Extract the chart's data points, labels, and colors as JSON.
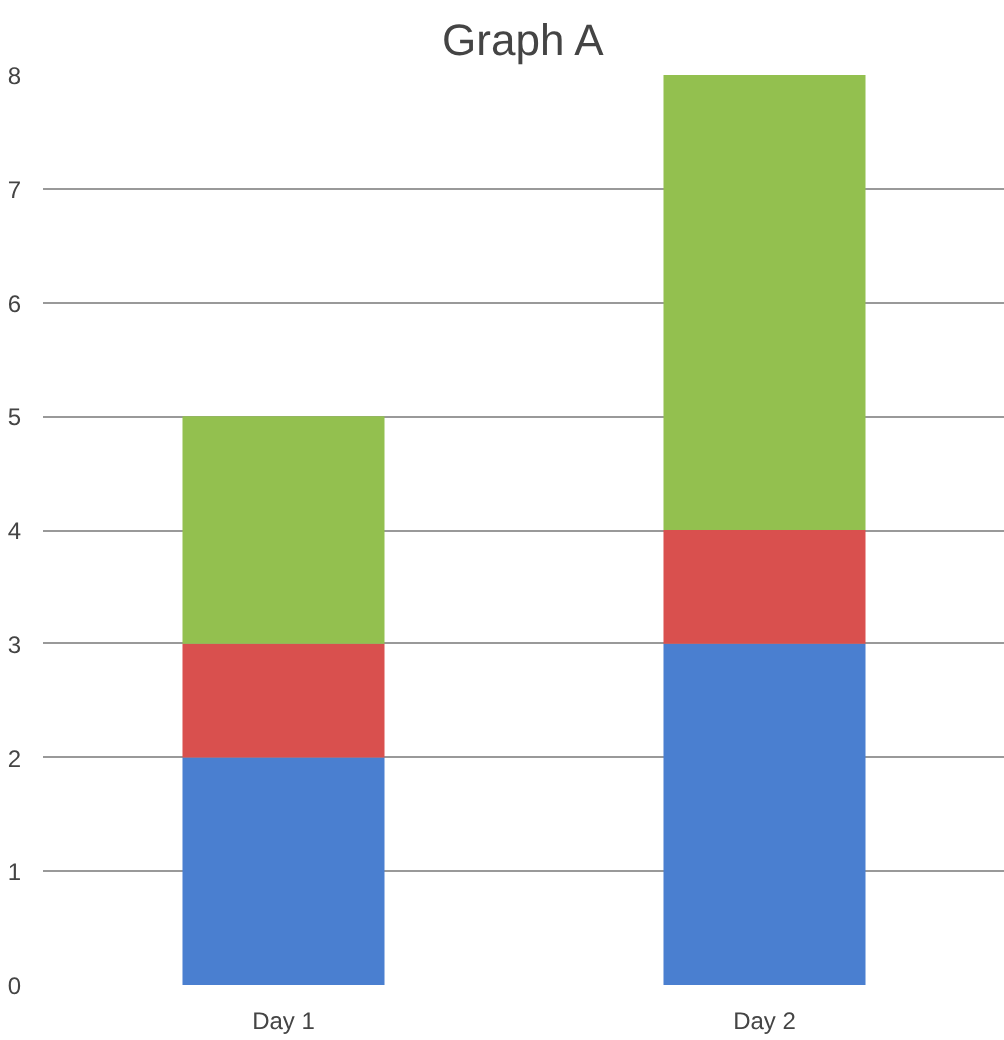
{
  "chart_data": {
    "type": "bar",
    "title": "Graph A",
    "stacked": true,
    "categories": [
      "Day 1",
      "Day 2"
    ],
    "series": [
      {
        "color": "#4a7fd0",
        "values": [
          2,
          3
        ]
      },
      {
        "color": "#d9504e",
        "values": [
          1,
          1
        ]
      },
      {
        "color": "#93c04f",
        "values": [
          2,
          4
        ]
      }
    ],
    "ylim": [
      0,
      8
    ],
    "yticks": [
      0,
      1,
      2,
      3,
      4,
      5,
      6,
      7,
      8
    ],
    "grid": "y"
  }
}
